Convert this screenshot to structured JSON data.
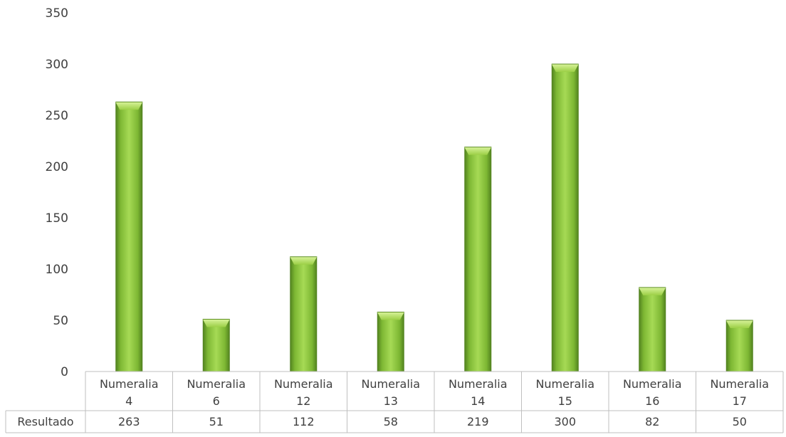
{
  "chart_data": {
    "type": "bar",
    "categories": [
      [
        "Numeralia",
        "4"
      ],
      [
        "Numeralia",
        "6"
      ],
      [
        "Numeralia",
        "12"
      ],
      [
        "Numeralia",
        "13"
      ],
      [
        "Numeralia",
        "14"
      ],
      [
        "Numeralia",
        "15"
      ],
      [
        "Numeralia",
        "16"
      ],
      [
        "Numeralia",
        "17"
      ]
    ],
    "series": [
      {
        "name": "Resultado",
        "values": [
          263,
          51,
          112,
          58,
          219,
          300,
          82,
          50
        ],
        "color": "#8dc63f"
      }
    ],
    "ylim": [
      0,
      350
    ],
    "yticks": [
      0,
      50,
      100,
      150,
      200,
      250,
      300,
      350
    ],
    "grid": false,
    "data_table": true,
    "title": "",
    "xlabel": "",
    "ylabel": ""
  }
}
